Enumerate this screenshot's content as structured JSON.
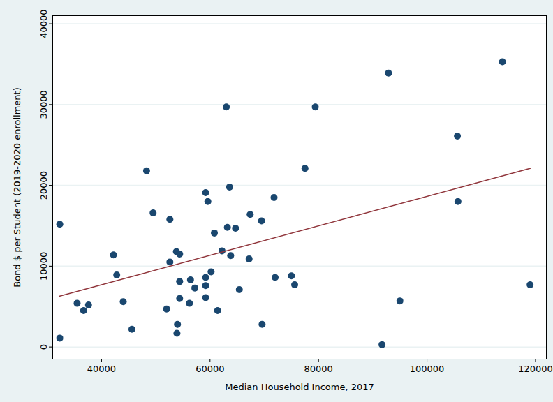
{
  "chart_data": {
    "type": "scatter",
    "x_label": "Median Household Income, 2017",
    "y_label": "Bond $ per Student (2019-2020 enrollment)",
    "xlim": [
      31000,
      122000
    ],
    "ylim": [
      -1500,
      41000
    ],
    "xticks": [
      40000,
      60000,
      80000,
      100000,
      120000
    ],
    "yticks": [
      0,
      10000,
      20000,
      30000,
      40000
    ],
    "grid": true,
    "series": [
      {
        "type": "scatter",
        "color": "#1a476f",
        "marker": "circle",
        "x": [
          32300,
          32300,
          35500,
          36700,
          37600,
          42200,
          42800,
          44000,
          45600,
          48300,
          49500,
          52000,
          52600,
          52600,
          53800,
          53900,
          54000,
          54400,
          54400,
          54400,
          56200,
          56400,
          57200,
          59200,
          59200,
          59200,
          59200,
          59600,
          60200,
          60800,
          61400,
          62200,
          63000,
          63200,
          63600,
          63800,
          64700,
          65400,
          67400,
          67200,
          69500,
          69600,
          71800,
          72000,
          75000,
          75600,
          77500,
          79400,
          92900,
          91700,
          95000,
          105600,
          105700,
          113900,
          119000
        ],
        "values": [
          15200,
          1100,
          5400,
          4500,
          5200,
          11400,
          8900,
          5600,
          2200,
          21800,
          16600,
          4700,
          15800,
          10500,
          11800,
          1700,
          2800,
          8100,
          11500,
          6000,
          5400,
          8300,
          7300,
          19100,
          6100,
          7600,
          8600,
          18000,
          9300,
          14100,
          4500,
          11900,
          29700,
          14800,
          19800,
          11300,
          14700,
          7100,
          16400,
          10900,
          15600,
          2800,
          18500,
          8600,
          8800,
          7700,
          22100,
          29700,
          33900,
          300,
          5700,
          26100,
          18000,
          35300,
          7700
        ]
      },
      {
        "type": "line",
        "color": "#90353b",
        "line_style": "solid",
        "x": [
          32300,
          119000
        ],
        "values": [
          6300,
          22100
        ]
      }
    ]
  }
}
